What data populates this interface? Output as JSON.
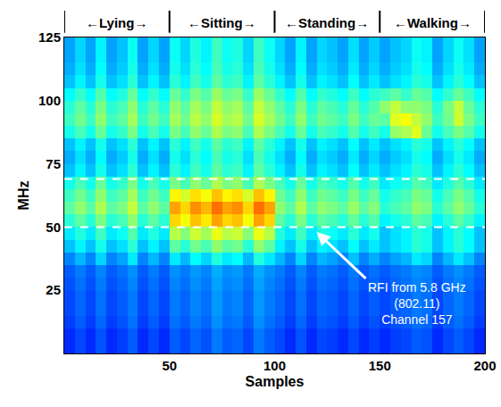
{
  "chart_data": {
    "type": "heatmap",
    "xlabel": "Samples",
    "ylabel": "MHz",
    "xlim": [
      0,
      200
    ],
    "xticks": [
      50,
      100,
      150,
      200
    ],
    "ylim": [
      0,
      125
    ],
    "yticks": [
      25,
      50,
      75,
      100,
      125
    ],
    "zlim": [
      0,
      1
    ],
    "segments": [
      {
        "label": "←Lying→",
        "start": 0,
        "end": 50
      },
      {
        "label": "←Sitting→",
        "start": 50,
        "end": 100
      },
      {
        "label": "←Standing→",
        "start": 100,
        "end": 150
      },
      {
        "label": "←Walking→",
        "start": 150,
        "end": 200
      }
    ],
    "hlines": [
      50,
      69
    ],
    "annotations": [
      {
        "text": [
          "RFI from 5.8 GHz",
          "(802.11)",
          "Channel 157"
        ],
        "x": 120,
        "y": 48
      }
    ],
    "x": [
      2.5,
      7.5,
      12.5,
      17.5,
      22.5,
      27.5,
      32.5,
      37.5,
      42.5,
      47.5,
      52.5,
      57.5,
      62.5,
      67.5,
      72.5,
      77.5,
      82.5,
      87.5,
      92.5,
      97.5,
      102.5,
      107.5,
      112.5,
      117.5,
      122.5,
      127.5,
      132.5,
      137.5,
      142.5,
      147.5,
      152.5,
      157.5,
      162.5,
      167.5,
      172.5,
      177.5,
      182.5,
      187.5,
      192.5,
      197.5
    ],
    "y": [
      2.5,
      7.5,
      12.5,
      17.5,
      22.5,
      27.5,
      32.5,
      37.5,
      42.5,
      47.5,
      52.5,
      57.5,
      62.5,
      67.5,
      72.5,
      77.5,
      82.5,
      87.5,
      92.5,
      97.5,
      102.5,
      107.5,
      112.5,
      117.5,
      122.5
    ],
    "z": [
      [
        0.15,
        0.18,
        0.15,
        0.19,
        0.15,
        0.17,
        0.2,
        0.15,
        0.18,
        0.15,
        0.2,
        0.18,
        0.21,
        0.19,
        0.23,
        0.2,
        0.21,
        0.18,
        0.23,
        0.2,
        0.18,
        0.15,
        0.19,
        0.15,
        0.18,
        0.17,
        0.15,
        0.18,
        0.15,
        0.17,
        0.15,
        0.17,
        0.18,
        0.2,
        0.19,
        0.15,
        0.18,
        0.2,
        0.18,
        0.15
      ],
      [
        0.15,
        0.18,
        0.15,
        0.19,
        0.15,
        0.17,
        0.2,
        0.15,
        0.18,
        0.15,
        0.2,
        0.18,
        0.21,
        0.19,
        0.23,
        0.2,
        0.21,
        0.18,
        0.23,
        0.2,
        0.18,
        0.15,
        0.19,
        0.15,
        0.18,
        0.17,
        0.15,
        0.18,
        0.15,
        0.17,
        0.15,
        0.17,
        0.18,
        0.2,
        0.19,
        0.15,
        0.18,
        0.2,
        0.18,
        0.15
      ],
      [
        0.17,
        0.2,
        0.17,
        0.21,
        0.17,
        0.19,
        0.22,
        0.17,
        0.2,
        0.17,
        0.22,
        0.2,
        0.23,
        0.21,
        0.25,
        0.22,
        0.23,
        0.2,
        0.25,
        0.22,
        0.2,
        0.17,
        0.21,
        0.17,
        0.2,
        0.19,
        0.17,
        0.2,
        0.17,
        0.19,
        0.17,
        0.19,
        0.2,
        0.22,
        0.21,
        0.17,
        0.2,
        0.22,
        0.2,
        0.17
      ],
      [
        0.18,
        0.21,
        0.18,
        0.22,
        0.18,
        0.2,
        0.23,
        0.18,
        0.21,
        0.18,
        0.23,
        0.21,
        0.24,
        0.22,
        0.26,
        0.23,
        0.24,
        0.21,
        0.26,
        0.23,
        0.21,
        0.18,
        0.22,
        0.18,
        0.21,
        0.2,
        0.18,
        0.21,
        0.18,
        0.2,
        0.18,
        0.2,
        0.21,
        0.23,
        0.22,
        0.18,
        0.21,
        0.23,
        0.21,
        0.18
      ],
      [
        0.18,
        0.21,
        0.18,
        0.22,
        0.18,
        0.2,
        0.23,
        0.18,
        0.21,
        0.18,
        0.23,
        0.21,
        0.24,
        0.22,
        0.26,
        0.23,
        0.24,
        0.21,
        0.26,
        0.23,
        0.21,
        0.18,
        0.22,
        0.18,
        0.21,
        0.2,
        0.18,
        0.21,
        0.18,
        0.2,
        0.18,
        0.2,
        0.21,
        0.23,
        0.22,
        0.18,
        0.21,
        0.23,
        0.21,
        0.18
      ],
      [
        0.19,
        0.22,
        0.19,
        0.23,
        0.19,
        0.21,
        0.24,
        0.19,
        0.22,
        0.19,
        0.24,
        0.22,
        0.25,
        0.23,
        0.27,
        0.24,
        0.25,
        0.22,
        0.27,
        0.24,
        0.22,
        0.19,
        0.23,
        0.19,
        0.22,
        0.21,
        0.19,
        0.22,
        0.19,
        0.21,
        0.19,
        0.21,
        0.22,
        0.24,
        0.23,
        0.19,
        0.22,
        0.24,
        0.22,
        0.19
      ],
      [
        0.2,
        0.23,
        0.2,
        0.24,
        0.2,
        0.22,
        0.25,
        0.2,
        0.23,
        0.2,
        0.25,
        0.23,
        0.26,
        0.24,
        0.28,
        0.25,
        0.26,
        0.23,
        0.28,
        0.25,
        0.23,
        0.2,
        0.24,
        0.2,
        0.23,
        0.22,
        0.2,
        0.23,
        0.2,
        0.22,
        0.2,
        0.22,
        0.23,
        0.25,
        0.24,
        0.2,
        0.23,
        0.25,
        0.23,
        0.2
      ],
      [
        0.24,
        0.29,
        0.24,
        0.32,
        0.24,
        0.27,
        0.34,
        0.24,
        0.29,
        0.24,
        0.34,
        0.29,
        0.36,
        0.32,
        0.39,
        0.34,
        0.36,
        0.29,
        0.39,
        0.34,
        0.29,
        0.24,
        0.32,
        0.24,
        0.29,
        0.27,
        0.24,
        0.3,
        0.24,
        0.28,
        0.24,
        0.27,
        0.29,
        0.34,
        0.32,
        0.24,
        0.29,
        0.34,
        0.3,
        0.24
      ],
      [
        0.3,
        0.35,
        0.3,
        0.38,
        0.3,
        0.33,
        0.4,
        0.3,
        0.35,
        0.3,
        0.45,
        0.4,
        0.47,
        0.43,
        0.5,
        0.45,
        0.47,
        0.4,
        0.5,
        0.45,
        0.35,
        0.3,
        0.38,
        0.3,
        0.35,
        0.33,
        0.3,
        0.36,
        0.3,
        0.34,
        0.3,
        0.33,
        0.35,
        0.4,
        0.38,
        0.3,
        0.35,
        0.4,
        0.36,
        0.3
      ],
      [
        0.34,
        0.39,
        0.34,
        0.42,
        0.34,
        0.37,
        0.44,
        0.34,
        0.39,
        0.34,
        0.54,
        0.49,
        0.56,
        0.52,
        0.59,
        0.54,
        0.56,
        0.49,
        0.59,
        0.54,
        0.39,
        0.34,
        0.42,
        0.34,
        0.39,
        0.37,
        0.34,
        0.4,
        0.34,
        0.38,
        0.3,
        0.33,
        0.35,
        0.4,
        0.38,
        0.3,
        0.35,
        0.4,
        0.36,
        0.3
      ],
      [
        0.4,
        0.45,
        0.4,
        0.48,
        0.4,
        0.43,
        0.5,
        0.4,
        0.45,
        0.4,
        0.65,
        0.6,
        0.67,
        0.63,
        0.7,
        0.65,
        0.67,
        0.6,
        0.7,
        0.65,
        0.45,
        0.4,
        0.48,
        0.4,
        0.45,
        0.43,
        0.4,
        0.46,
        0.4,
        0.44,
        0.35,
        0.38,
        0.4,
        0.45,
        0.43,
        0.35,
        0.4,
        0.45,
        0.41,
        0.35
      ],
      [
        0.45,
        0.5,
        0.45,
        0.53,
        0.45,
        0.48,
        0.55,
        0.45,
        0.5,
        0.45,
        0.7,
        0.65,
        0.72,
        0.68,
        0.75,
        0.7,
        0.72,
        0.65,
        0.75,
        0.7,
        0.5,
        0.45,
        0.53,
        0.45,
        0.5,
        0.48,
        0.45,
        0.51,
        0.45,
        0.49,
        0.4,
        0.43,
        0.45,
        0.5,
        0.48,
        0.4,
        0.45,
        0.5,
        0.46,
        0.4
      ],
      [
        0.42,
        0.47,
        0.42,
        0.5,
        0.42,
        0.45,
        0.52,
        0.42,
        0.47,
        0.42,
        0.62,
        0.57,
        0.64,
        0.6,
        0.67,
        0.62,
        0.64,
        0.57,
        0.67,
        0.62,
        0.47,
        0.42,
        0.5,
        0.42,
        0.47,
        0.45,
        0.42,
        0.48,
        0.42,
        0.46,
        0.38,
        0.41,
        0.43,
        0.48,
        0.46,
        0.38,
        0.43,
        0.48,
        0.44,
        0.38
      ],
      [
        0.38,
        0.43,
        0.38,
        0.46,
        0.38,
        0.41,
        0.48,
        0.38,
        0.43,
        0.38,
        0.48,
        0.43,
        0.5,
        0.46,
        0.53,
        0.48,
        0.5,
        0.43,
        0.53,
        0.48,
        0.43,
        0.38,
        0.46,
        0.38,
        0.43,
        0.41,
        0.38,
        0.44,
        0.38,
        0.42,
        0.34,
        0.37,
        0.39,
        0.44,
        0.42,
        0.34,
        0.39,
        0.44,
        0.4,
        0.34
      ],
      [
        0.3,
        0.35,
        0.3,
        0.38,
        0.3,
        0.33,
        0.4,
        0.3,
        0.35,
        0.3,
        0.4,
        0.35,
        0.42,
        0.38,
        0.45,
        0.4,
        0.42,
        0.35,
        0.45,
        0.4,
        0.35,
        0.3,
        0.38,
        0.3,
        0.35,
        0.33,
        0.3,
        0.36,
        0.3,
        0.34,
        0.3,
        0.33,
        0.35,
        0.4,
        0.38,
        0.3,
        0.35,
        0.4,
        0.36,
        0.3
      ],
      [
        0.28,
        0.33,
        0.28,
        0.36,
        0.28,
        0.31,
        0.38,
        0.28,
        0.33,
        0.28,
        0.38,
        0.33,
        0.4,
        0.36,
        0.43,
        0.38,
        0.4,
        0.33,
        0.43,
        0.38,
        0.33,
        0.28,
        0.36,
        0.28,
        0.33,
        0.31,
        0.28,
        0.34,
        0.28,
        0.32,
        0.28,
        0.31,
        0.33,
        0.38,
        0.36,
        0.28,
        0.33,
        0.38,
        0.34,
        0.28
      ],
      [
        0.3,
        0.35,
        0.3,
        0.38,
        0.3,
        0.33,
        0.4,
        0.3,
        0.35,
        0.3,
        0.4,
        0.35,
        0.42,
        0.38,
        0.45,
        0.4,
        0.42,
        0.35,
        0.45,
        0.4,
        0.35,
        0.3,
        0.38,
        0.3,
        0.35,
        0.33,
        0.3,
        0.36,
        0.3,
        0.34,
        0.3,
        0.33,
        0.35,
        0.4,
        0.38,
        0.3,
        0.35,
        0.4,
        0.36,
        0.3
      ],
      [
        0.38,
        0.43,
        0.38,
        0.46,
        0.38,
        0.41,
        0.48,
        0.38,
        0.43,
        0.38,
        0.48,
        0.43,
        0.5,
        0.46,
        0.53,
        0.48,
        0.5,
        0.43,
        0.53,
        0.48,
        0.43,
        0.38,
        0.46,
        0.38,
        0.43,
        0.41,
        0.38,
        0.44,
        0.38,
        0.42,
        0.38,
        0.51,
        0.53,
        0.58,
        0.46,
        0.38,
        0.43,
        0.48,
        0.44,
        0.38
      ],
      [
        0.42,
        0.47,
        0.42,
        0.5,
        0.42,
        0.45,
        0.52,
        0.42,
        0.47,
        0.42,
        0.52,
        0.47,
        0.54,
        0.5,
        0.57,
        0.52,
        0.54,
        0.47,
        0.57,
        0.52,
        0.47,
        0.42,
        0.5,
        0.42,
        0.47,
        0.45,
        0.42,
        0.48,
        0.42,
        0.46,
        0.45,
        0.58,
        0.6,
        0.55,
        0.5,
        0.42,
        0.47,
        0.56,
        0.48,
        0.42
      ],
      [
        0.4,
        0.45,
        0.4,
        0.48,
        0.4,
        0.43,
        0.5,
        0.4,
        0.45,
        0.4,
        0.5,
        0.45,
        0.52,
        0.48,
        0.55,
        0.5,
        0.52,
        0.45,
        0.55,
        0.5,
        0.45,
        0.4,
        0.48,
        0.4,
        0.45,
        0.43,
        0.4,
        0.46,
        0.4,
        0.44,
        0.5,
        0.55,
        0.5,
        0.5,
        0.48,
        0.4,
        0.48,
        0.55,
        0.46,
        0.4
      ],
      [
        0.36,
        0.41,
        0.36,
        0.44,
        0.36,
        0.39,
        0.46,
        0.36,
        0.41,
        0.36,
        0.46,
        0.41,
        0.48,
        0.44,
        0.51,
        0.46,
        0.48,
        0.41,
        0.51,
        0.46,
        0.41,
        0.36,
        0.44,
        0.36,
        0.41,
        0.39,
        0.36,
        0.42,
        0.36,
        0.4,
        0.42,
        0.45,
        0.41,
        0.46,
        0.44,
        0.36,
        0.41,
        0.46,
        0.42,
        0.36
      ],
      [
        0.3,
        0.35,
        0.3,
        0.38,
        0.3,
        0.33,
        0.4,
        0.3,
        0.35,
        0.3,
        0.4,
        0.35,
        0.42,
        0.38,
        0.45,
        0.4,
        0.42,
        0.35,
        0.45,
        0.4,
        0.35,
        0.3,
        0.38,
        0.3,
        0.35,
        0.33,
        0.3,
        0.36,
        0.3,
        0.34,
        0.3,
        0.33,
        0.35,
        0.4,
        0.38,
        0.3,
        0.35,
        0.4,
        0.36,
        0.3
      ],
      [
        0.28,
        0.33,
        0.28,
        0.36,
        0.28,
        0.31,
        0.38,
        0.28,
        0.33,
        0.28,
        0.38,
        0.33,
        0.4,
        0.36,
        0.43,
        0.38,
        0.4,
        0.33,
        0.43,
        0.38,
        0.33,
        0.28,
        0.36,
        0.28,
        0.33,
        0.31,
        0.28,
        0.34,
        0.28,
        0.32,
        0.28,
        0.31,
        0.33,
        0.38,
        0.36,
        0.28,
        0.33,
        0.38,
        0.34,
        0.28
      ],
      [
        0.27,
        0.32,
        0.27,
        0.35,
        0.27,
        0.3,
        0.37,
        0.27,
        0.32,
        0.27,
        0.37,
        0.32,
        0.39,
        0.35,
        0.42,
        0.37,
        0.39,
        0.32,
        0.42,
        0.37,
        0.32,
        0.27,
        0.35,
        0.27,
        0.32,
        0.3,
        0.27,
        0.33,
        0.27,
        0.31,
        0.27,
        0.3,
        0.32,
        0.37,
        0.35,
        0.27,
        0.32,
        0.37,
        0.33,
        0.27
      ],
      [
        0.27,
        0.32,
        0.27,
        0.35,
        0.27,
        0.3,
        0.37,
        0.27,
        0.32,
        0.27,
        0.37,
        0.32,
        0.39,
        0.35,
        0.42,
        0.37,
        0.39,
        0.32,
        0.42,
        0.37,
        0.32,
        0.27,
        0.35,
        0.27,
        0.32,
        0.3,
        0.27,
        0.33,
        0.27,
        0.31,
        0.27,
        0.3,
        0.32,
        0.37,
        0.35,
        0.27,
        0.32,
        0.37,
        0.33,
        0.27
      ]
    ]
  }
}
